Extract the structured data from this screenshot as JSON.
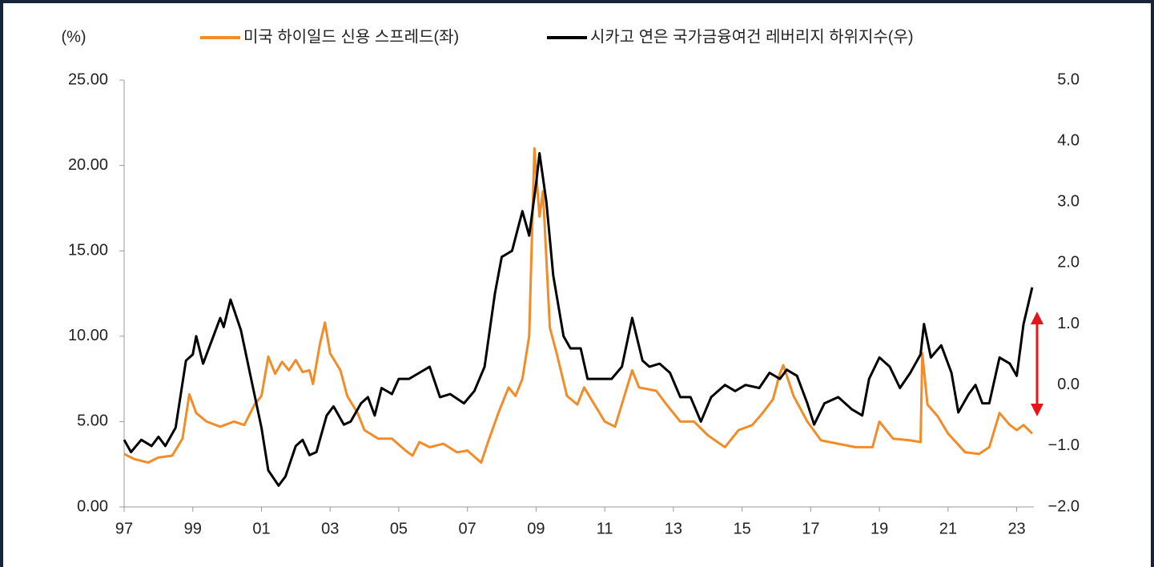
{
  "chart_data": {
    "type": "line",
    "y_unit_label": "(%)",
    "xlim": [
      1997,
      2023.5
    ],
    "xticks": [
      {
        "value": 1997,
        "label": "97"
      },
      {
        "value": 1999,
        "label": "99"
      },
      {
        "value": 2001,
        "label": "01"
      },
      {
        "value": 2003,
        "label": "03"
      },
      {
        "value": 2005,
        "label": "05"
      },
      {
        "value": 2007,
        "label": "07"
      },
      {
        "value": 2009,
        "label": "09"
      },
      {
        "value": 2011,
        "label": "11"
      },
      {
        "value": 2013,
        "label": "13"
      },
      {
        "value": 2015,
        "label": "15"
      },
      {
        "value": 2017,
        "label": "17"
      },
      {
        "value": 2019,
        "label": "19"
      },
      {
        "value": 2021,
        "label": "21"
      },
      {
        "value": 2023,
        "label": "23"
      }
    ],
    "ylim": [
      0,
      25
    ],
    "yticks": [
      {
        "value": 0,
        "label": "0.00"
      },
      {
        "value": 5,
        "label": "5.00"
      },
      {
        "value": 10,
        "label": "10.00"
      },
      {
        "value": 15,
        "label": "15.00"
      },
      {
        "value": 20,
        "label": "20.00"
      },
      {
        "value": 25,
        "label": "25.00"
      }
    ],
    "y2lim": [
      -2,
      5
    ],
    "y2ticks": [
      {
        "value": -2,
        "label": "−2.0"
      },
      {
        "value": -1,
        "label": "−1.0"
      },
      {
        "value": 0,
        "label": "0.0"
      },
      {
        "value": 1,
        "label": "1.0"
      },
      {
        "value": 2,
        "label": "2.0"
      },
      {
        "value": 3,
        "label": "3.0"
      },
      {
        "value": 4,
        "label": "4.0"
      },
      {
        "value": 5,
        "label": "5.0"
      }
    ],
    "series": [
      {
        "name": "미국 하이일드 신용 스프레드(좌)",
        "color": "#f28c28",
        "axis": "y",
        "x": [
          1997.0,
          1997.3,
          1997.7,
          1998.0,
          1998.4,
          1998.7,
          1998.9,
          1999.1,
          1999.4,
          1999.8,
          2000.2,
          2000.5,
          2000.8,
          2001.0,
          2001.2,
          2001.4,
          2001.6,
          2001.8,
          2002.0,
          2002.2,
          2002.4,
          2002.5,
          2002.7,
          2002.85,
          2003.0,
          2003.3,
          2003.5,
          2003.8,
          2004.0,
          2004.4,
          2004.8,
          2005.2,
          2005.4,
          2005.6,
          2005.9,
          2006.3,
          2006.7,
          2007.0,
          2007.4,
          2007.6,
          2007.9,
          2008.2,
          2008.4,
          2008.6,
          2008.8,
          2008.95,
          2009.1,
          2009.2,
          2009.4,
          2009.6,
          2009.9,
          2010.2,
          2010.4,
          2010.7,
          2011.0,
          2011.3,
          2011.8,
          2012.0,
          2012.5,
          2012.8,
          2013.2,
          2013.6,
          2014.0,
          2014.5,
          2014.9,
          2015.3,
          2015.6,
          2015.9,
          2016.1,
          2016.2,
          2016.5,
          2016.9,
          2017.3,
          2017.8,
          2018.3,
          2018.8,
          2019.0,
          2019.4,
          2019.9,
          2020.2,
          2020.25,
          2020.4,
          2020.7,
          2021.0,
          2021.5,
          2021.9,
          2022.2,
          2022.5,
          2022.8,
          2023.0,
          2023.2,
          2023.45
        ],
        "values": [
          3.1,
          2.8,
          2.6,
          2.9,
          3.0,
          4.0,
          6.6,
          5.5,
          5.0,
          4.7,
          5.0,
          4.8,
          6.0,
          6.5,
          8.8,
          7.8,
          8.5,
          8.0,
          8.6,
          7.9,
          8.0,
          7.2,
          9.5,
          10.8,
          9.0,
          8.0,
          6.5,
          5.5,
          4.5,
          4.0,
          4.0,
          3.3,
          3.0,
          3.8,
          3.5,
          3.7,
          3.2,
          3.3,
          2.6,
          3.8,
          5.5,
          7.0,
          6.5,
          7.5,
          10.0,
          21.0,
          17.0,
          18.5,
          10.5,
          9.0,
          6.5,
          6.0,
          7.0,
          6.0,
          5.0,
          4.7,
          8.0,
          7.0,
          6.8,
          6.0,
          5.0,
          5.0,
          4.2,
          3.5,
          4.5,
          4.8,
          5.5,
          6.3,
          7.8,
          8.3,
          6.5,
          5.0,
          3.9,
          3.7,
          3.5,
          3.5,
          5.0,
          4.0,
          3.9,
          3.8,
          9.0,
          6.0,
          5.3,
          4.3,
          3.2,
          3.1,
          3.5,
          5.5,
          4.8,
          4.5,
          4.8,
          4.3
        ]
      },
      {
        "name": "시카고 연은 국가금융여건 레버리지 하위지수(우)",
        "color": "#000000",
        "axis": "y2",
        "x": [
          1997.0,
          1997.2,
          1997.5,
          1997.8,
          1998.0,
          1998.2,
          1998.5,
          1998.8,
          1999.0,
          1999.1,
          1999.3,
          1999.6,
          1999.8,
          1999.9,
          2000.1,
          2000.4,
          2000.7,
          2001.0,
          2001.2,
          2001.5,
          2001.7,
          2002.0,
          2002.2,
          2002.4,
          2002.6,
          2002.9,
          2003.1,
          2003.4,
          2003.6,
          2003.9,
          2004.1,
          2004.3,
          2004.5,
          2004.8,
          2005.0,
          2005.3,
          2005.6,
          2005.9,
          2006.2,
          2006.5,
          2006.9,
          2007.2,
          2007.5,
          2007.8,
          2008.0,
          2008.3,
          2008.6,
          2008.8,
          2009.0,
          2009.1,
          2009.3,
          2009.5,
          2009.8,
          2010.0,
          2010.3,
          2010.5,
          2010.8,
          2011.2,
          2011.5,
          2011.8,
          2012.1,
          2012.3,
          2012.6,
          2012.9,
          2013.2,
          2013.5,
          2013.8,
          2014.1,
          2014.5,
          2014.8,
          2015.1,
          2015.5,
          2015.8,
          2016.1,
          2016.3,
          2016.6,
          2016.9,
          2017.1,
          2017.4,
          2017.8,
          2018.2,
          2018.5,
          2018.7,
          2019.0,
          2019.3,
          2019.6,
          2019.9,
          2020.2,
          2020.3,
          2020.5,
          2020.8,
          2021.1,
          2021.3,
          2021.6,
          2021.8,
          2022.0,
          2022.2,
          2022.5,
          2022.8,
          2023.0,
          2023.2,
          2023.45
        ],
        "values": [
          -0.9,
          -1.1,
          -0.9,
          -1.0,
          -0.85,
          -1.0,
          -0.7,
          0.4,
          0.5,
          0.8,
          0.35,
          0.8,
          1.1,
          0.95,
          1.4,
          0.9,
          0.1,
          -0.7,
          -1.4,
          -1.65,
          -1.5,
          -1.0,
          -0.9,
          -1.15,
          -1.1,
          -0.5,
          -0.35,
          -0.65,
          -0.6,
          -0.3,
          -0.2,
          -0.5,
          -0.05,
          -0.15,
          0.1,
          0.1,
          0.2,
          0.3,
          -0.2,
          -0.15,
          -0.3,
          -0.1,
          0.3,
          1.5,
          2.1,
          2.2,
          2.85,
          2.45,
          3.3,
          3.8,
          3.0,
          1.8,
          0.8,
          0.6,
          0.6,
          0.1,
          0.1,
          0.1,
          0.3,
          1.1,
          0.4,
          0.3,
          0.35,
          0.2,
          -0.2,
          -0.2,
          -0.6,
          -0.2,
          0.0,
          -0.1,
          0.0,
          -0.05,
          0.2,
          0.1,
          0.25,
          0.15,
          -0.3,
          -0.65,
          -0.3,
          -0.2,
          -0.4,
          -0.5,
          0.1,
          0.45,
          0.3,
          -0.05,
          0.2,
          0.5,
          1.0,
          0.45,
          0.65,
          0.2,
          -0.45,
          -0.15,
          0.0,
          -0.3,
          -0.3,
          0.45,
          0.35,
          0.15,
          1.0,
          1.6
        ]
      }
    ]
  }
}
